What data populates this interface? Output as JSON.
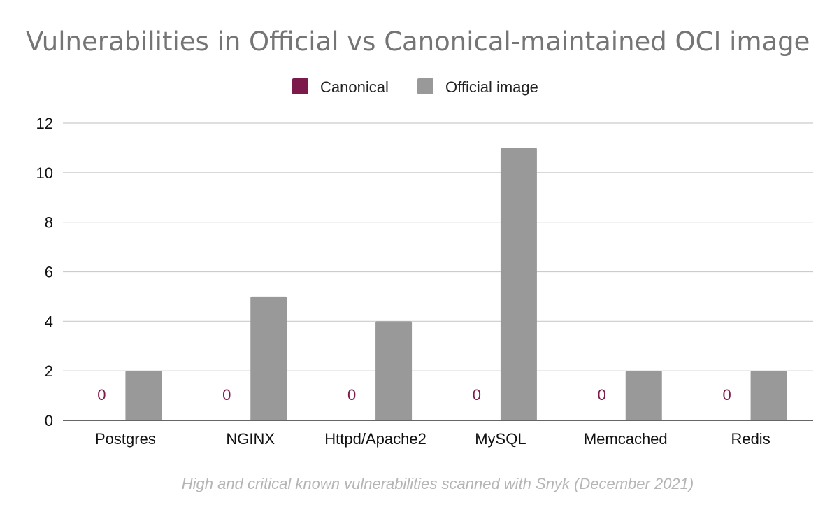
{
  "chart_data": {
    "type": "bar",
    "title": "Vulnerabilities in Official vs Canonical-maintained OCI image",
    "footnote": "High and critical known vulnerabilities scanned with Snyk (December 2021)",
    "categories": [
      "Postgres",
      "NGINX",
      "Httpd/Apache2",
      "MySQL",
      "Memcached",
      "Redis"
    ],
    "series": [
      {
        "name": "Canonical",
        "color": "#7b1a4b",
        "values": [
          0,
          0,
          0,
          0,
          0,
          0
        ],
        "data_labels": [
          "0",
          "0",
          "0",
          "0",
          "0",
          "0"
        ]
      },
      {
        "name": "Official image",
        "color": "#999999",
        "values": [
          2,
          5,
          4,
          11,
          2,
          2
        ]
      }
    ],
    "ylim": [
      0,
      12
    ],
    "yticks": [
      0,
      2,
      4,
      6,
      8,
      10,
      12
    ],
    "ytick_labels": [
      "0",
      "2",
      "4",
      "6",
      "8",
      "10",
      "12"
    ],
    "grid": true,
    "legend_position": "top-center",
    "xlabel": "",
    "ylabel": ""
  }
}
